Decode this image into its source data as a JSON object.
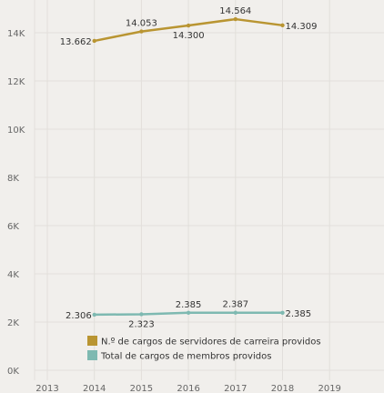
{
  "colors": {
    "background": "#f1efec",
    "grid": "#e2dfdb",
    "series_gold": "#b99532",
    "series_teal": "#7eb9b1"
  },
  "chart_data": {
    "type": "line",
    "x_ticks": [
      "2013",
      "2014",
      "2015",
      "2016",
      "2017",
      "2018",
      "2019"
    ],
    "y_ticks": [
      "0K",
      "2K",
      "4K",
      "6K",
      "8K",
      "10K",
      "12K",
      "14K"
    ],
    "xlim": [
      2013,
      2019
    ],
    "ylim": [
      0,
      15000
    ],
    "grid": "vertical and horizontal",
    "legend_position": "bottom-left inside plot",
    "series": [
      {
        "name": "N.º de cargos de servidores de carreira providos",
        "color": "#b99532",
        "x": [
          2014,
          2015,
          2016,
          2017,
          2018
        ],
        "values": [
          13662,
          14053,
          14300,
          14564,
          14309
        ],
        "labels": [
          "13.662",
          "14.053",
          "14.300",
          "14.564",
          "14.309"
        ],
        "label_pos": [
          "left",
          "above",
          "below",
          "above",
          "right"
        ]
      },
      {
        "name": "Total de cargos de membros providos",
        "color": "#7eb9b1",
        "x": [
          2014,
          2015,
          2016,
          2017,
          2018
        ],
        "values": [
          2306,
          2323,
          2385,
          2387,
          2385
        ],
        "labels": [
          "2.306",
          "2.323",
          "2.385",
          "2.387",
          "2.385"
        ],
        "label_pos": [
          "left",
          "below",
          "above",
          "above",
          "right"
        ]
      }
    ]
  }
}
